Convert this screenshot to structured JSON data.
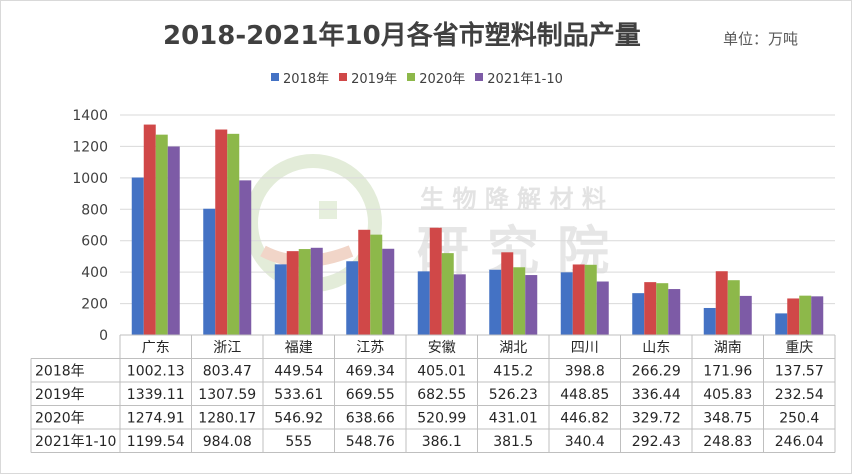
{
  "title": "2018-2021年10月各省市塑料制品产量",
  "unit_label": "单位：万吨",
  "watermark": {
    "line1": "生 物 降 解 材 料",
    "line2": "研 究 院"
  },
  "colors": {
    "s2018": "#4472c4",
    "s2019": "#d04848",
    "s2020": "#8db84a",
    "s2021": "#7d5ba6"
  },
  "chart_data": {
    "type": "bar",
    "title": "2018-2021年10月各省市塑料制品产量",
    "xlabel": "",
    "ylabel": "",
    "ylim": [
      0,
      1400
    ],
    "yticks": [
      0,
      200,
      400,
      600,
      800,
      1000,
      1200,
      1400
    ],
    "grid": true,
    "legend_position": "top",
    "data_table": true,
    "categories": [
      "广东",
      "浙江",
      "福建",
      "江苏",
      "安徽",
      "湖北",
      "四川",
      "山东",
      "湖南",
      "重庆"
    ],
    "series": [
      {
        "name": "2018年",
        "values": [
          1002.13,
          803.47,
          449.54,
          469.34,
          405.01,
          415.2,
          398.8,
          266.29,
          171.96,
          137.57
        ]
      },
      {
        "name": "2019年",
        "values": [
          1339.11,
          1307.59,
          533.61,
          669.55,
          682.55,
          526.23,
          448.85,
          336.44,
          405.83,
          232.54
        ]
      },
      {
        "name": "2020年",
        "values": [
          1274.91,
          1280.17,
          546.92,
          638.66,
          520.99,
          431.01,
          446.82,
          329.72,
          348.75,
          250.4
        ]
      },
      {
        "name": "2021年1-10",
        "values": [
          1199.54,
          984.08,
          555,
          548.76,
          386.1,
          381.5,
          340.4,
          292.43,
          248.83,
          246.04
        ]
      }
    ],
    "table_values": [
      [
        "1002.13",
        "803.47",
        "449.54",
        "469.34",
        "405.01",
        "415.2",
        "398.8",
        "266.29",
        "171.96",
        "137.57"
      ],
      [
        "1339.11",
        "1307.59",
        "533.61",
        "669.55",
        "682.55",
        "526.23",
        "448.85",
        "336.44",
        "405.83",
        "232.54"
      ],
      [
        "1274.91",
        "1280.17",
        "546.92",
        "638.66",
        "520.99",
        "431.01",
        "446.82",
        "329.72",
        "348.75",
        "250.4"
      ],
      [
        "1199.54",
        "984.08",
        "555",
        "548.76",
        "386.1",
        "381.5",
        "340.4",
        "292.43",
        "248.83",
        "246.04"
      ]
    ]
  }
}
